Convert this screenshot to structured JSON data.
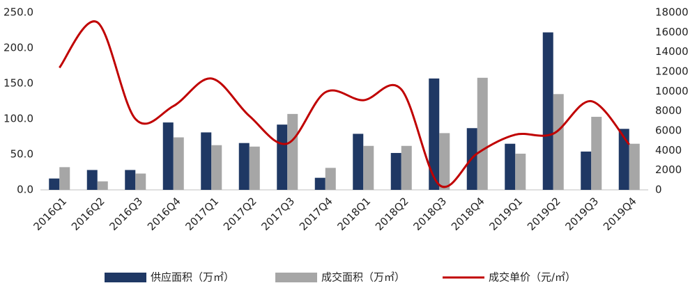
{
  "chart_data": {
    "type": "bar-line",
    "categories": [
      "2016Q1",
      "2016Q2",
      "2016Q3",
      "2016Q4",
      "2017Q1",
      "2017Q2",
      "2017Q3",
      "2017Q4",
      "2018Q1",
      "2018Q2",
      "2018Q3",
      "2018Q4",
      "2019Q1",
      "2019Q2",
      "2019Q3",
      "2019Q4"
    ],
    "series": [
      {
        "name": "供应面积（万㎡）",
        "color": "#1f3864",
        "type": "bar",
        "values": [
          16,
          28,
          28,
          95,
          81,
          66,
          92,
          17,
          79,
          52,
          157,
          87,
          65,
          222,
          54,
          86
        ]
      },
      {
        "name": "成交面积（万㎡）",
        "color": "#a6a6a6",
        "type": "bar",
        "values": [
          32,
          12,
          23,
          74,
          63,
          61,
          107,
          31,
          62,
          62,
          80,
          158,
          51,
          135,
          103,
          65
        ]
      },
      {
        "name": "成交单价（元/㎡）",
        "color": "#c00000",
        "type": "line",
        "axis": "y2",
        "values": [
          12400,
          17000,
          7200,
          8500,
          11300,
          7500,
          4700,
          9900,
          9100,
          10200,
          500,
          3700,
          5600,
          5700,
          9000,
          4600
        ]
      }
    ],
    "ylim": [
      0,
      250
    ],
    "yticks": [
      {
        "value": 0,
        "label": "0.0"
      },
      {
        "value": 50,
        "label": "50.0"
      },
      {
        "value": 100,
        "label": "100.0"
      },
      {
        "value": 150,
        "label": "150.0"
      },
      {
        "value": 200,
        "label": "200.0"
      },
      {
        "value": 250,
        "label": "250.0"
      }
    ],
    "y2lim": [
      0,
      18000
    ],
    "y2ticks": [
      0,
      2000,
      4000,
      6000,
      8000,
      10000,
      12000,
      14000,
      16000,
      18000
    ],
    "legend": "bottom"
  }
}
